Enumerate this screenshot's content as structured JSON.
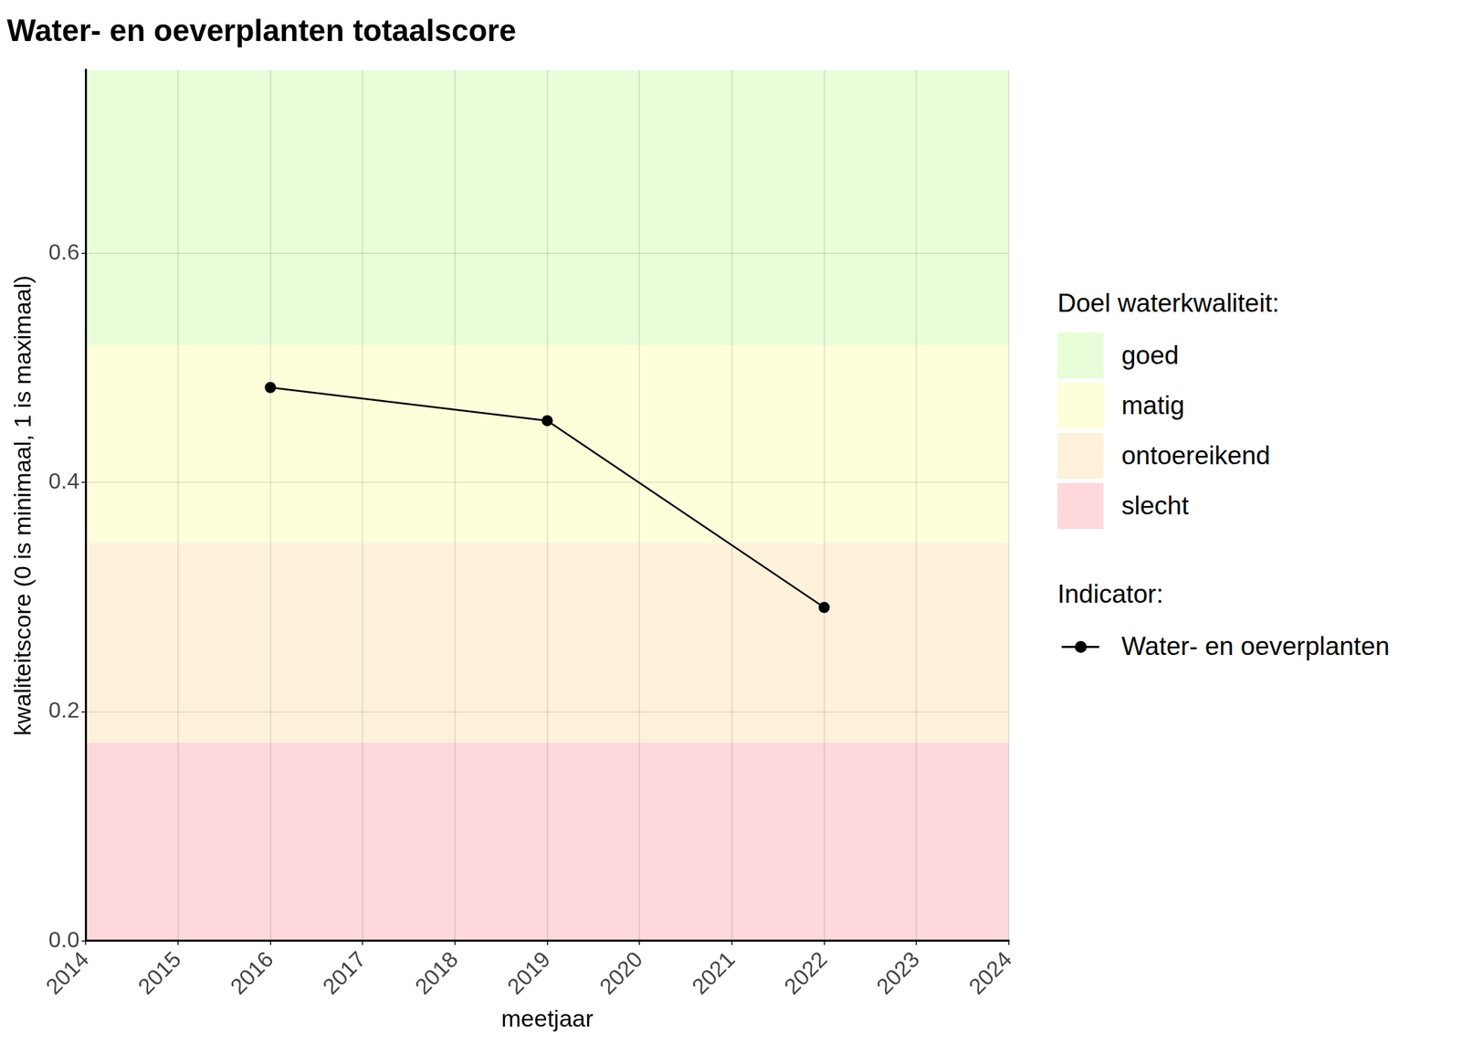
{
  "chart_data": {
    "type": "line",
    "title": "Water- en oeverplanten totaalscore",
    "x_label": "meetjaar",
    "y_label": "kwaliteitscore (0 is minimaal, 1 is maximaal)",
    "x": [
      2016,
      2019,
      2022
    ],
    "series": [
      {
        "name": "Water- en oeverplanten",
        "color": "#000000",
        "values": [
          0.483,
          0.454,
          0.291
        ],
        "marker": "circle",
        "line_style": "solid"
      }
    ],
    "legend_title": "Indicator:",
    "bands_title": "Doel waterkwaliteit:",
    "bands": [
      {
        "name": "goed",
        "color": "#e8fdd8",
        "from": 0.52,
        "to": 0.76
      },
      {
        "name": "matig",
        "color": "#fefedb",
        "from": 0.347,
        "to": 0.52
      },
      {
        "name": "ontoereikend",
        "color": "#fef1da",
        "from": 0.173,
        "to": 0.347
      },
      {
        "name": "slecht",
        "color": "#fed8da",
        "from": 0,
        "to": 0.173
      }
    ],
    "xlim": [
      2014,
      2024
    ],
    "xticks": [
      2014,
      2015,
      2016,
      2017,
      2018,
      2019,
      2020,
      2021,
      2022,
      2023,
      2024
    ],
    "ylim": [
      0,
      0.76
    ],
    "yticks": [
      {
        "value": 0,
        "label": "0.0"
      },
      0.2,
      0.4,
      0.6
    ],
    "grid": true
  }
}
